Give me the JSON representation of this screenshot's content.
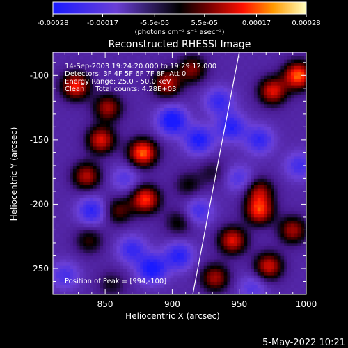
{
  "chart_data": {
    "type": "heatmap",
    "title": "Reconstructed RHESSI Image",
    "xlabel": "Heliocentric X (arcsec)",
    "ylabel": "Heliocentric Y (arcsec)",
    "xlim": [
      811,
      1000
    ],
    "ylim": [
      -270,
      -82
    ],
    "x_ticks": [
      850,
      900,
      950,
      1000
    ],
    "y_ticks": [
      -100,
      -150,
      -200,
      -250
    ],
    "colorbar": {
      "min": -0.00028,
      "max": 0.00028,
      "tick_values": [
        -0.00028,
        -0.00017,
        -5.5e-05,
        5.5e-05,
        0.00017,
        0.00028
      ],
      "tick_labels": [
        "-0.00028",
        "-0.00017",
        "-5.5e-05",
        "5.5e-05",
        "0.00017",
        "0.00028"
      ],
      "units_label": "(photons cm⁻² s⁻¹ asec⁻²)"
    },
    "annotations": [
      "14-Sep-2003 19:24:20.000 to 19:29:12.000",
      "Detectors: 3F 4F 5F 6F 7F 8F, Att 0",
      "Energy Range: 25.0 - 50.0 keV",
      "Clean     Total counts: 4.28E+03"
    ],
    "peak_label": "Position of Peak = [994,-100]",
    "limb_line": {
      "x": [
        915,
        950
      ],
      "y": [
        -272,
        -82
      ]
    },
    "grid": false,
    "hot_spots": [
      {
        "x": 828,
        "y": -108,
        "value": 0.00024
      },
      {
        "x": 878,
        "y": -160,
        "value": 0.00028
      },
      {
        "x": 880,
        "y": -196,
        "value": 0.00025
      },
      {
        "x": 847,
        "y": -150,
        "value": 0.00022
      },
      {
        "x": 852,
        "y": -125,
        "value": 0.00018
      },
      {
        "x": 896,
        "y": -106,
        "value": 0.0002
      },
      {
        "x": 836,
        "y": -178,
        "value": 0.00019
      },
      {
        "x": 915,
        "y": -95,
        "value": 0.00016
      },
      {
        "x": 994,
        "y": -100,
        "value": 0.00028
      },
      {
        "x": 975,
        "y": -112,
        "value": 0.00022
      },
      {
        "x": 965,
        "y": -205,
        "value": 0.00024
      },
      {
        "x": 945,
        "y": -228,
        "value": 0.00022
      },
      {
        "x": 972,
        "y": -248,
        "value": 0.00021
      },
      {
        "x": 932,
        "y": -257,
        "value": 0.00018
      },
      {
        "x": 965,
        "y": -190,
        "value": 0.00017
      },
      {
        "x": 990,
        "y": -220,
        "value": 0.00018
      },
      {
        "x": 860,
        "y": -205,
        "value": 0.00013
      },
      {
        "x": 838,
        "y": -228,
        "value": 0.00011
      },
      {
        "x": 905,
        "y": -214,
        "value": 0.0001
      },
      {
        "x": 855,
        "y": -262,
        "value": 8e-05
      },
      {
        "x": 930,
        "y": -175,
        "value": 7e-05
      },
      {
        "x": 912,
        "y": -185,
        "value": 9e-05
      }
    ],
    "cold_spots": [
      {
        "x": 900,
        "y": -135,
        "value": -0.00024
      },
      {
        "x": 920,
        "y": -150,
        "value": -0.0002
      },
      {
        "x": 885,
        "y": -250,
        "value": -0.00022
      },
      {
        "x": 905,
        "y": -240,
        "value": -0.00018
      },
      {
        "x": 840,
        "y": -205,
        "value": -0.00017
      },
      {
        "x": 944,
        "y": -140,
        "value": -0.00018
      },
      {
        "x": 965,
        "y": -150,
        "value": -0.00016
      },
      {
        "x": 935,
        "y": -120,
        "value": -0.00015
      },
      {
        "x": 870,
        "y": -235,
        "value": -0.00015
      },
      {
        "x": 995,
        "y": -170,
        "value": -0.00013
      },
      {
        "x": 920,
        "y": -205,
        "value": -0.00013
      },
      {
        "x": 960,
        "y": -265,
        "value": -0.0001
      },
      {
        "x": 820,
        "y": -255,
        "value": -0.00012
      },
      {
        "x": 865,
        "y": -180,
        "value": -0.0001
      },
      {
        "x": 950,
        "y": -180,
        "value": -0.00011
      }
    ]
  },
  "footer": {
    "timestamp": "5-May-2022 10:21"
  }
}
